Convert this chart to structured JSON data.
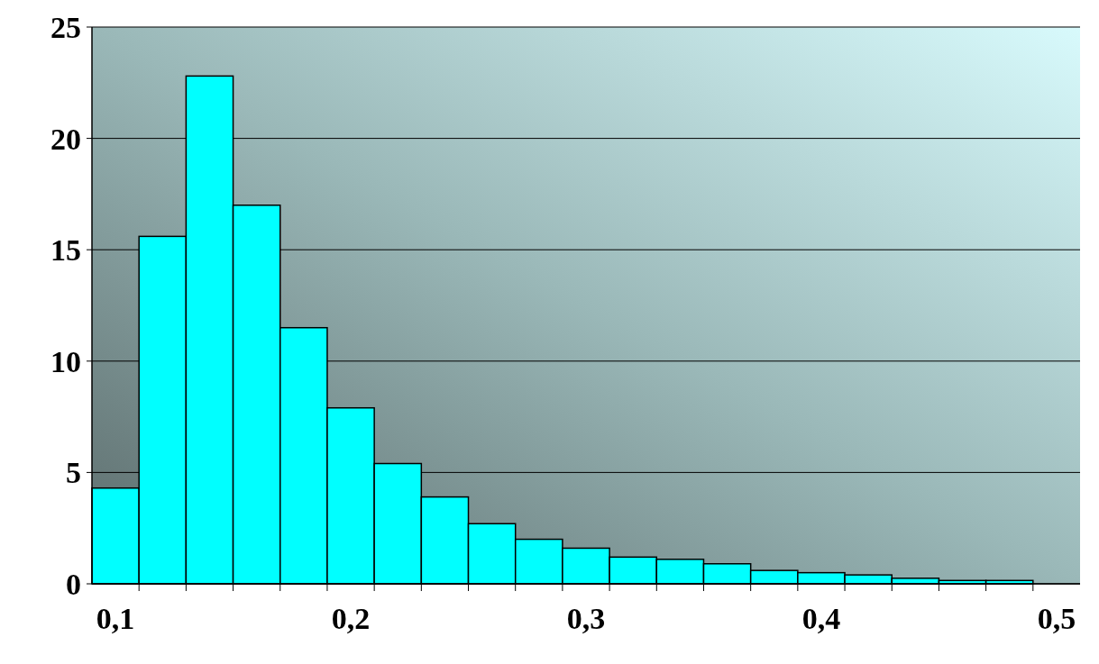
{
  "chart_data": {
    "type": "histogram",
    "bins": [
      0.09,
      0.11,
      0.13,
      0.15,
      0.17,
      0.19,
      0.21,
      0.23,
      0.25,
      0.27,
      0.29,
      0.31,
      0.33,
      0.35,
      0.37,
      0.39,
      0.41,
      0.43,
      0.45,
      0.47,
      0.49,
      0.51
    ],
    "values": [
      4.3,
      15.6,
      22.8,
      17.0,
      11.5,
      7.9,
      5.4,
      3.9,
      2.7,
      2.0,
      1.6,
      1.2,
      1.1,
      0.9,
      0.6,
      0.5,
      0.4,
      0.25,
      0.15,
      0.15,
      0
    ],
    "color": "#00ffff",
    "xlim": [
      0.09,
      0.51
    ],
    "xticks": [
      {
        "value": 0.1,
        "label": "0,1"
      },
      {
        "value": 0.2,
        "label": "0,2"
      },
      {
        "value": 0.3,
        "label": "0,3"
      },
      {
        "value": 0.4,
        "label": "0,4"
      },
      {
        "value": 0.5,
        "label": "0,5"
      },
      {
        "value": 0.11,
        "label": null
      },
      {
        "value": 0.13,
        "label": null
      },
      {
        "value": 0.15,
        "label": null
      },
      {
        "value": 0.17,
        "label": null
      },
      {
        "value": 0.19,
        "label": null
      },
      {
        "value": 0.21,
        "label": null
      },
      {
        "value": 0.23,
        "label": null
      },
      {
        "value": 0.25,
        "label": null
      },
      {
        "value": 0.27,
        "label": null
      },
      {
        "value": 0.29,
        "label": null
      },
      {
        "value": 0.31,
        "label": null
      },
      {
        "value": 0.33,
        "label": null
      },
      {
        "value": 0.35,
        "label": null
      },
      {
        "value": 0.37,
        "label": null
      },
      {
        "value": 0.39,
        "label": null
      },
      {
        "value": 0.41,
        "label": null
      },
      {
        "value": 0.43,
        "label": null
      },
      {
        "value": 0.45,
        "label": null
      },
      {
        "value": 0.47,
        "label": null
      },
      {
        "value": 0.49,
        "label": null
      }
    ],
    "ylim": [
      0,
      25
    ],
    "yticks": [
      0,
      5,
      10,
      15,
      20,
      25
    ],
    "grid": "y"
  }
}
